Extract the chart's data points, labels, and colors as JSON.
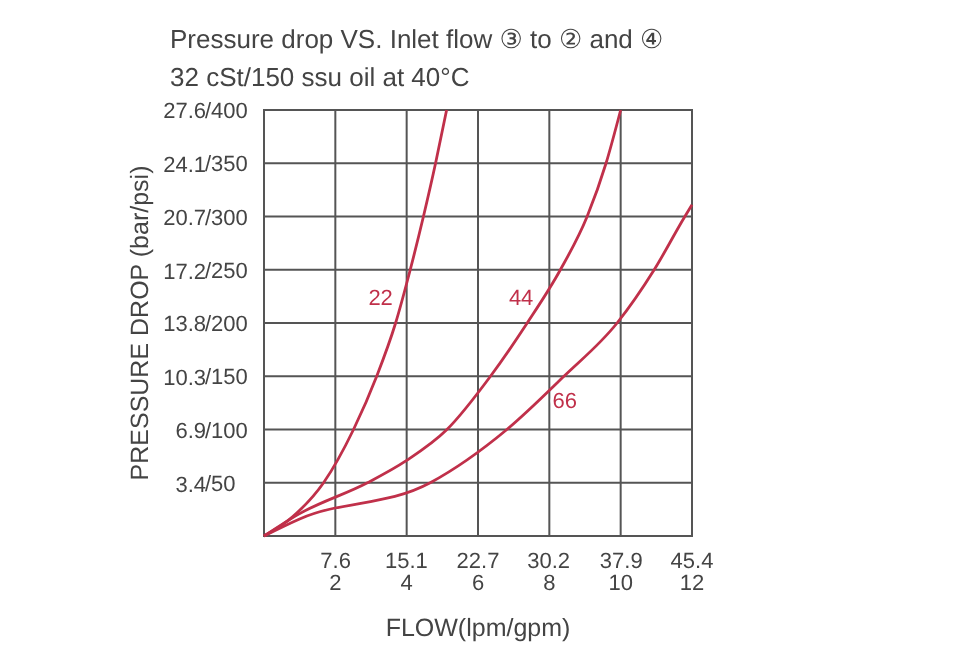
{
  "chart_data": {
    "type": "line",
    "title": "Pressure drop VS. Inlet flow ③ to ② and ④",
    "subtitle": "32 cSt/150 ssu oil at 40°C",
    "xlabel": "FLOW(lpm/gpm)",
    "ylabel": "PRESSURE DROP (bar/psi)",
    "xlim": [
      0,
      12
    ],
    "xticks": [
      2,
      4,
      6,
      8,
      10,
      12
    ],
    "x2lim": [
      0,
      45.4
    ],
    "x2ticks": [
      7.6,
      15.1,
      22.7,
      30.2,
      37.9,
      45.4
    ],
    "ylim": [
      0,
      27.6
    ],
    "yticks": [
      3.4,
      6.9,
      10.3,
      13.8,
      17.2,
      20.7,
      24.1,
      27.6
    ],
    "y2lim": [
      0,
      400
    ],
    "y2ticks": [
      {
        "value": 50,
        "label": "/50"
      },
      {
        "value": 100,
        "label": "/100"
      },
      {
        "value": 150,
        "label": "/150"
      },
      {
        "value": 200,
        "label": "/200"
      },
      {
        "value": 250,
        "label": "/250"
      },
      {
        "value": 300,
        "label": "/300"
      },
      {
        "value": 350,
        "label": "/350"
      },
      {
        "value": 400,
        "label": "/400"
      }
    ],
    "grid": true,
    "line_style": "solid",
    "series": [
      {
        "name": "22",
        "axis": "y2",
        "color": "#c0304a",
        "x": [
          0,
          0.8,
          1.67,
          2.51,
          3.16,
          3.69,
          4.1,
          4.47,
          4.81,
          5.12
        ],
        "values": [
          0,
          18,
          50,
          100,
          150,
          200,
          250,
          300,
          350,
          400
        ]
      },
      {
        "name": "44",
        "axis": "y2",
        "color": "#c0304a",
        "x": [
          0,
          1,
          2.9,
          4,
          5.13,
          6.35,
          7.38,
          8.31,
          9.06,
          9.59,
          10
        ],
        "values": [
          0,
          21,
          50,
          71,
          100,
          150,
          200,
          250,
          300,
          350,
          400
        ]
      },
      {
        "name": "66",
        "axis": "y2",
        "color": "#c0304a",
        "x": [
          0,
          1,
          4.66,
          6.81,
          8.41,
          9.9,
          10.94,
          11.8,
          12
        ],
        "values": [
          0,
          16,
          50,
          100,
          150,
          200,
          250,
          300,
          311
        ]
      }
    ]
  }
}
